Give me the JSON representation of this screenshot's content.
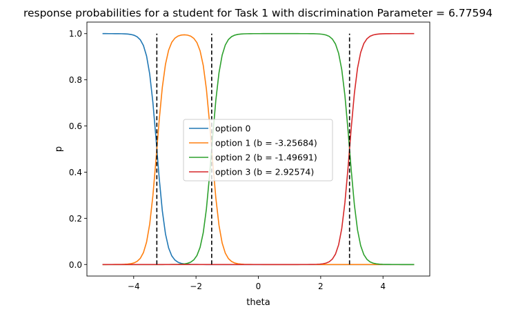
{
  "chart_data": {
    "type": "line",
    "title": "response probabilities for a student for Task 1 with discrimination Parameter = 6.77594",
    "xlabel": "theta",
    "ylabel": "p",
    "xlim": [
      -5.5,
      5.5
    ],
    "ylim": [
      -0.05,
      1.05
    ],
    "xticks": [
      -4,
      -2,
      0,
      2,
      4
    ],
    "xtick_labels": [
      "−4",
      "−2",
      "0",
      "2",
      "4"
    ],
    "yticks": [
      0.0,
      0.2,
      0.4,
      0.6,
      0.8,
      1.0
    ],
    "ytick_labels": [
      "0.0",
      "0.2",
      "0.4",
      "0.6",
      "0.8",
      "1.0"
    ],
    "grid": false,
    "legend_position": "center",
    "discrimination": 6.77594,
    "thresholds": [
      -3.25684,
      -1.49691,
      2.92574
    ],
    "x_range": [
      -5,
      5
    ],
    "series": [
      {
        "name": "option 0",
        "color": "#1f77b4"
      },
      {
        "name": "option 1 (b = -3.25684)",
        "color": "#ff7f0e"
      },
      {
        "name": "option 2 (b = -1.49691)",
        "color": "#2ca02c"
      },
      {
        "name": "option 3 (b = 2.92574)",
        "color": "#d62728"
      }
    ],
    "vlines": {
      "x": [
        -3.25684,
        -1.49691,
        2.92574
      ],
      "ymin": 0,
      "ymax": 1,
      "color": "#000000",
      "style": "dashed"
    }
  }
}
